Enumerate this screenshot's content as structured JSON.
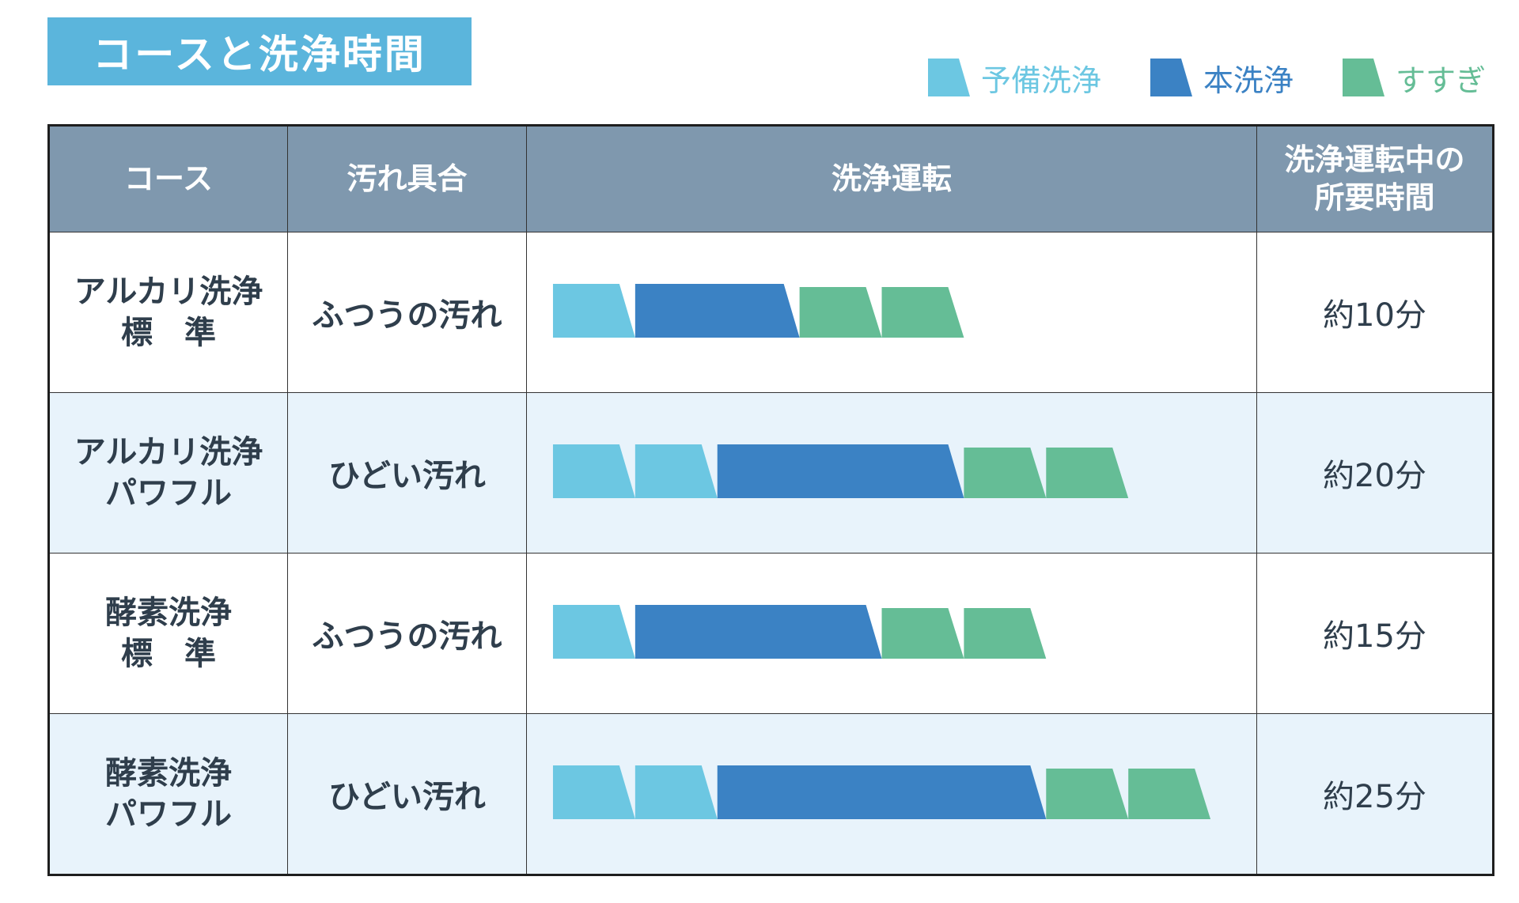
{
  "title": "コースと洗浄時間",
  "legend": {
    "pre_wash": {
      "label": "予備洗浄",
      "color": "#6cc7e2"
    },
    "main_wash": {
      "label": "本洗浄",
      "color": "#3b82c4"
    },
    "rinse": {
      "label": "すすぎ",
      "color": "#65bd96"
    }
  },
  "table": {
    "headers": {
      "course": "コース",
      "dirt": "汚れ具合",
      "operation": "洗浄運転",
      "time_line1": "洗浄運転中の",
      "time_line2": "所要時間"
    },
    "rows": [
      {
        "course_line1": "アルカリ洗浄",
        "course_line2": "標　準",
        "dirt": "ふつうの汚れ",
        "time": "約10分",
        "segments": [
          {
            "phase": "pre_wash",
            "units": 1
          },
          {
            "phase": "main_wash",
            "units": 2
          },
          {
            "phase": "rinse",
            "units": 1
          },
          {
            "phase": "rinse",
            "units": 1
          }
        ]
      },
      {
        "course_line1": "アルカリ洗浄",
        "course_line2": "パワフル",
        "dirt": "ひどい汚れ",
        "time": "約20分",
        "segments": [
          {
            "phase": "pre_wash",
            "units": 1
          },
          {
            "phase": "pre_wash",
            "units": 1
          },
          {
            "phase": "main_wash",
            "units": 3
          },
          {
            "phase": "rinse",
            "units": 1
          },
          {
            "phase": "rinse",
            "units": 1
          }
        ]
      },
      {
        "course_line1": "酵素洗浄",
        "course_line2": "標　準",
        "dirt": "ふつうの汚れ",
        "time": "約15分",
        "segments": [
          {
            "phase": "pre_wash",
            "units": 1
          },
          {
            "phase": "main_wash",
            "units": 3
          },
          {
            "phase": "rinse",
            "units": 1
          },
          {
            "phase": "rinse",
            "units": 1
          }
        ]
      },
      {
        "course_line1": "酵素洗浄",
        "course_line2": "パワフル",
        "dirt": "ひどい汚れ",
        "time": "約25分",
        "segments": [
          {
            "phase": "pre_wash",
            "units": 1
          },
          {
            "phase": "pre_wash",
            "units": 1
          },
          {
            "phase": "main_wash",
            "units": 4
          },
          {
            "phase": "rinse",
            "units": 1
          },
          {
            "phase": "rinse",
            "units": 1
          }
        ]
      }
    ]
  }
}
